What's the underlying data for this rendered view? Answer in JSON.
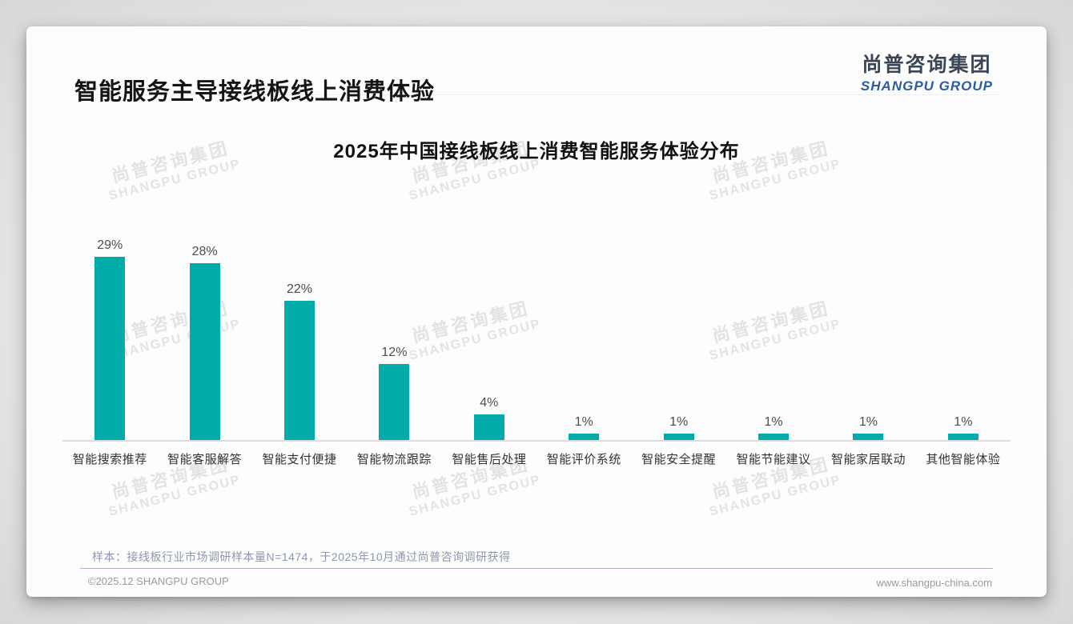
{
  "page": {
    "title": "智能服务主导接线板线上消费体验",
    "logo": {
      "cn": "尚普咨询集团",
      "en": "SHANGPU GROUP"
    },
    "watermark": {
      "cn": "尚普咨询集团",
      "en": "SHANGPU GROUP"
    },
    "note": "样本：接线板行业市场调研样本量N=1474，于2025年10月通过尚普咨询调研获得",
    "footer_left": "©2025.12 SHANGPU GROUP",
    "footer_right": "www.shangpu-china.com"
  },
  "colors": {
    "bar": "#00ACA8",
    "logo_blue": "#2B5CA0",
    "logo_dark": "#3A4656",
    "note_text": "#8A98AD",
    "axis_line": "#dcdcdc"
  },
  "chart_data": {
    "type": "bar",
    "title": "2025年中国接线板线上消费智能服务体验分布",
    "categories": [
      "智能搜索推荐",
      "智能客服解答",
      "智能支付便捷",
      "智能物流跟踪",
      "智能售后处理",
      "智能评价系统",
      "智能安全提醒",
      "智能节能建议",
      "智能家居联动",
      "其他智能体验"
    ],
    "values": [
      29,
      28,
      22,
      12,
      4,
      1,
      1,
      1,
      1,
      1
    ],
    "value_labels": [
      "29%",
      "28%",
      "22%",
      "12%",
      "4%",
      "1%",
      "1%",
      "1%",
      "1%",
      "1%"
    ],
    "unit": "%",
    "xlabel": "",
    "ylabel": "",
    "ylim": [
      0,
      32
    ],
    "grid": false,
    "legend": "none",
    "bar_color": "#00ACA8"
  }
}
